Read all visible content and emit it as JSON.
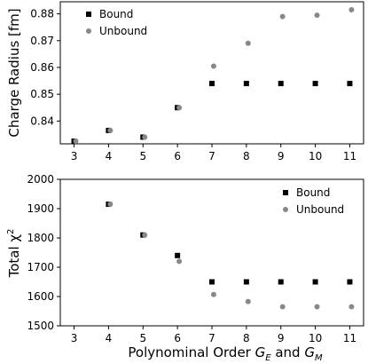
{
  "chart_data": [
    {
      "type": "scatter",
      "x_ticks": [
        3,
        4,
        5,
        6,
        7,
        8,
        9,
        10,
        11
      ],
      "show_x_tick_labels": true,
      "xlim": [
        2.6,
        11.4
      ],
      "ylabel": "Charge Radius [fm]",
      "ylim": [
        0.8315,
        0.8845
      ],
      "y_ticks": [
        0.84,
        0.85,
        0.86,
        0.87,
        0.88
      ],
      "y_tick_labels": [
        "0.84",
        "0.85",
        "0.86",
        "0.87",
        "0.88"
      ],
      "grid": false,
      "legend_position": "top-left",
      "series": [
        {
          "name": "Bound",
          "marker": "square",
          "color": "#000000",
          "x": [
            3,
            4,
            5,
            6,
            7,
            8,
            9,
            10,
            11
          ],
          "y": [
            0.8325,
            0.8365,
            0.834,
            0.845,
            0.854,
            0.854,
            0.854,
            0.854,
            0.854
          ]
        },
        {
          "name": "Unbound",
          "marker": "circle",
          "color": "#888888",
          "x": [
            3.05,
            4.05,
            5.05,
            6.05,
            7.05,
            8.05,
            9.05,
            10.05,
            11.05
          ],
          "y": [
            0.8325,
            0.8365,
            0.834,
            0.845,
            0.8605,
            0.869,
            0.879,
            0.8795,
            0.8815
          ]
        }
      ]
    },
    {
      "type": "scatter",
      "x_ticks": [
        3,
        4,
        5,
        6,
        7,
        8,
        9,
        10,
        11
      ],
      "show_x_tick_labels": true,
      "xlabel_pre": "Polynominal Order ",
      "xlabel_ge_main": "G",
      "xlabel_ge_sub": "E",
      "xlabel_and": " and ",
      "xlabel_gm_main": "G",
      "xlabel_gm_sub": "M",
      "xlim": [
        2.6,
        11.4
      ],
      "ylabel_text": "Total χ",
      "ylabel_sup": "2",
      "ylim": [
        1500,
        2000
      ],
      "y_ticks": [
        1500,
        1600,
        1700,
        1800,
        1900,
        2000
      ],
      "y_tick_labels": [
        "1500",
        "1600",
        "1700",
        "1800",
        "1900",
        "2000"
      ],
      "grid": false,
      "legend_position": "top-right",
      "series": [
        {
          "name": "Bound",
          "marker": "square",
          "color": "#000000",
          "x": [
            4,
            5,
            6,
            7,
            8,
            9,
            10,
            11
          ],
          "y": [
            1915,
            1810,
            1740,
            1650,
            1650,
            1650,
            1650,
            1650
          ]
        },
        {
          "name": "Unbound",
          "marker": "circle",
          "color": "#888888",
          "x": [
            4.05,
            5.05,
            6.05,
            7.05,
            8.05,
            9.05,
            10.05,
            11.05
          ],
          "y": [
            1915,
            1810,
            1720,
            1607,
            1583,
            1565,
            1565,
            1565
          ]
        }
      ]
    }
  ]
}
